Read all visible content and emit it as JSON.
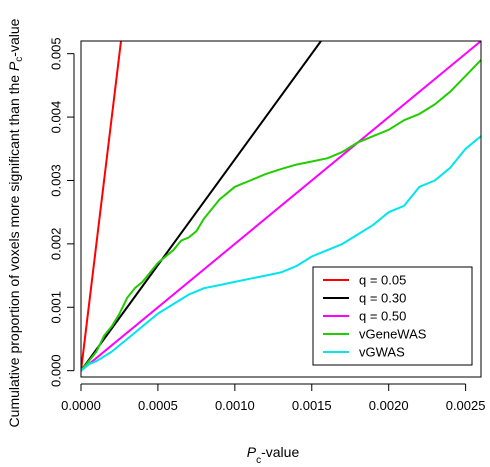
{
  "chart_data": {
    "type": "line",
    "xlabel": {
      "italic": "P",
      "sub": "c",
      "rest": "-value"
    },
    "ylabel": {
      "before": "Cumulative proportion of voxels more significant than the ",
      "italic": "P",
      "sub": "c",
      "after": "-value"
    },
    "xlim": [
      0,
      0.0026
    ],
    "ylim": [
      -0.0001,
      0.0052
    ],
    "x_ticks": [
      0,
      0.0005,
      0.001,
      0.0015,
      0.002,
      0.0025
    ],
    "x_tick_labels": [
      "0.0000",
      "0.0005",
      "0.0010",
      "0.0015",
      "0.0020",
      "0.0025"
    ],
    "y_ticks": [
      0,
      0.001,
      0.002,
      0.003,
      0.004,
      0.005
    ],
    "y_tick_labels": [
      "0.000",
      "0.001",
      "0.002",
      "0.003",
      "0.004",
      "0.005"
    ],
    "grid": false,
    "legend_position": "bottom-right",
    "series": [
      {
        "name": "q = 0.05",
        "color": "#ff0000",
        "x": [
          0,
          0.00026
        ],
        "y": [
          0,
          0.0052
        ]
      },
      {
        "name": "q = 0.30",
        "color": "#000000",
        "x": [
          0,
          0.00156
        ],
        "y": [
          0,
          0.0052
        ]
      },
      {
        "name": "q = 0.50",
        "color": "#ff00ff",
        "x": [
          0,
          0.0026
        ],
        "y": [
          0,
          0.0052
        ]
      },
      {
        "name": "vGeneWAS",
        "color": "#22cc00",
        "x": [
          0,
          5e-05,
          0.0001,
          0.00015,
          0.0002,
          0.00025,
          0.0003,
          0.00035,
          0.0004,
          0.00045,
          0.0005,
          0.00055,
          0.0006,
          0.00065,
          0.0007,
          0.00075,
          0.0008,
          0.00085,
          0.0009,
          0.00095,
          0.001,
          0.0011,
          0.0012,
          0.0013,
          0.0014,
          0.0015,
          0.0016,
          0.0017,
          0.0018,
          0.0019,
          0.002,
          0.0021,
          0.0022,
          0.0023,
          0.0024,
          0.0025,
          0.0026
        ],
        "y": [
          0,
          0.00015,
          0.0003,
          0.00055,
          0.0007,
          0.0009,
          0.00115,
          0.0013,
          0.0014,
          0.00155,
          0.0017,
          0.0018,
          0.0019,
          0.00205,
          0.0021,
          0.0022,
          0.0024,
          0.00255,
          0.0027,
          0.0028,
          0.0029,
          0.003,
          0.0031,
          0.00318,
          0.00325,
          0.0033,
          0.00335,
          0.00345,
          0.0036,
          0.0037,
          0.0038,
          0.00395,
          0.00405,
          0.0042,
          0.0044,
          0.00465,
          0.0049
        ]
      },
      {
        "name": "vGWAS",
        "color": "#00e5ee",
        "x": [
          0,
          5e-05,
          0.0001,
          0.0002,
          0.0003,
          0.0004,
          0.0005,
          0.0006,
          0.0007,
          0.0008,
          0.0009,
          0.001,
          0.0011,
          0.0012,
          0.0013,
          0.0014,
          0.0015,
          0.0016,
          0.0017,
          0.0018,
          0.0019,
          0.002,
          0.0021,
          0.0022,
          0.0023,
          0.0024,
          0.0025,
          0.0026
        ],
        "y": [
          0,
          0.0001,
          0.00015,
          0.0003,
          0.0005,
          0.0007,
          0.0009,
          0.00105,
          0.0012,
          0.0013,
          0.00135,
          0.0014,
          0.00145,
          0.0015,
          0.00155,
          0.00165,
          0.0018,
          0.0019,
          0.002,
          0.00215,
          0.0023,
          0.0025,
          0.0026,
          0.0029,
          0.003,
          0.0032,
          0.0035,
          0.0037
        ]
      }
    ]
  }
}
